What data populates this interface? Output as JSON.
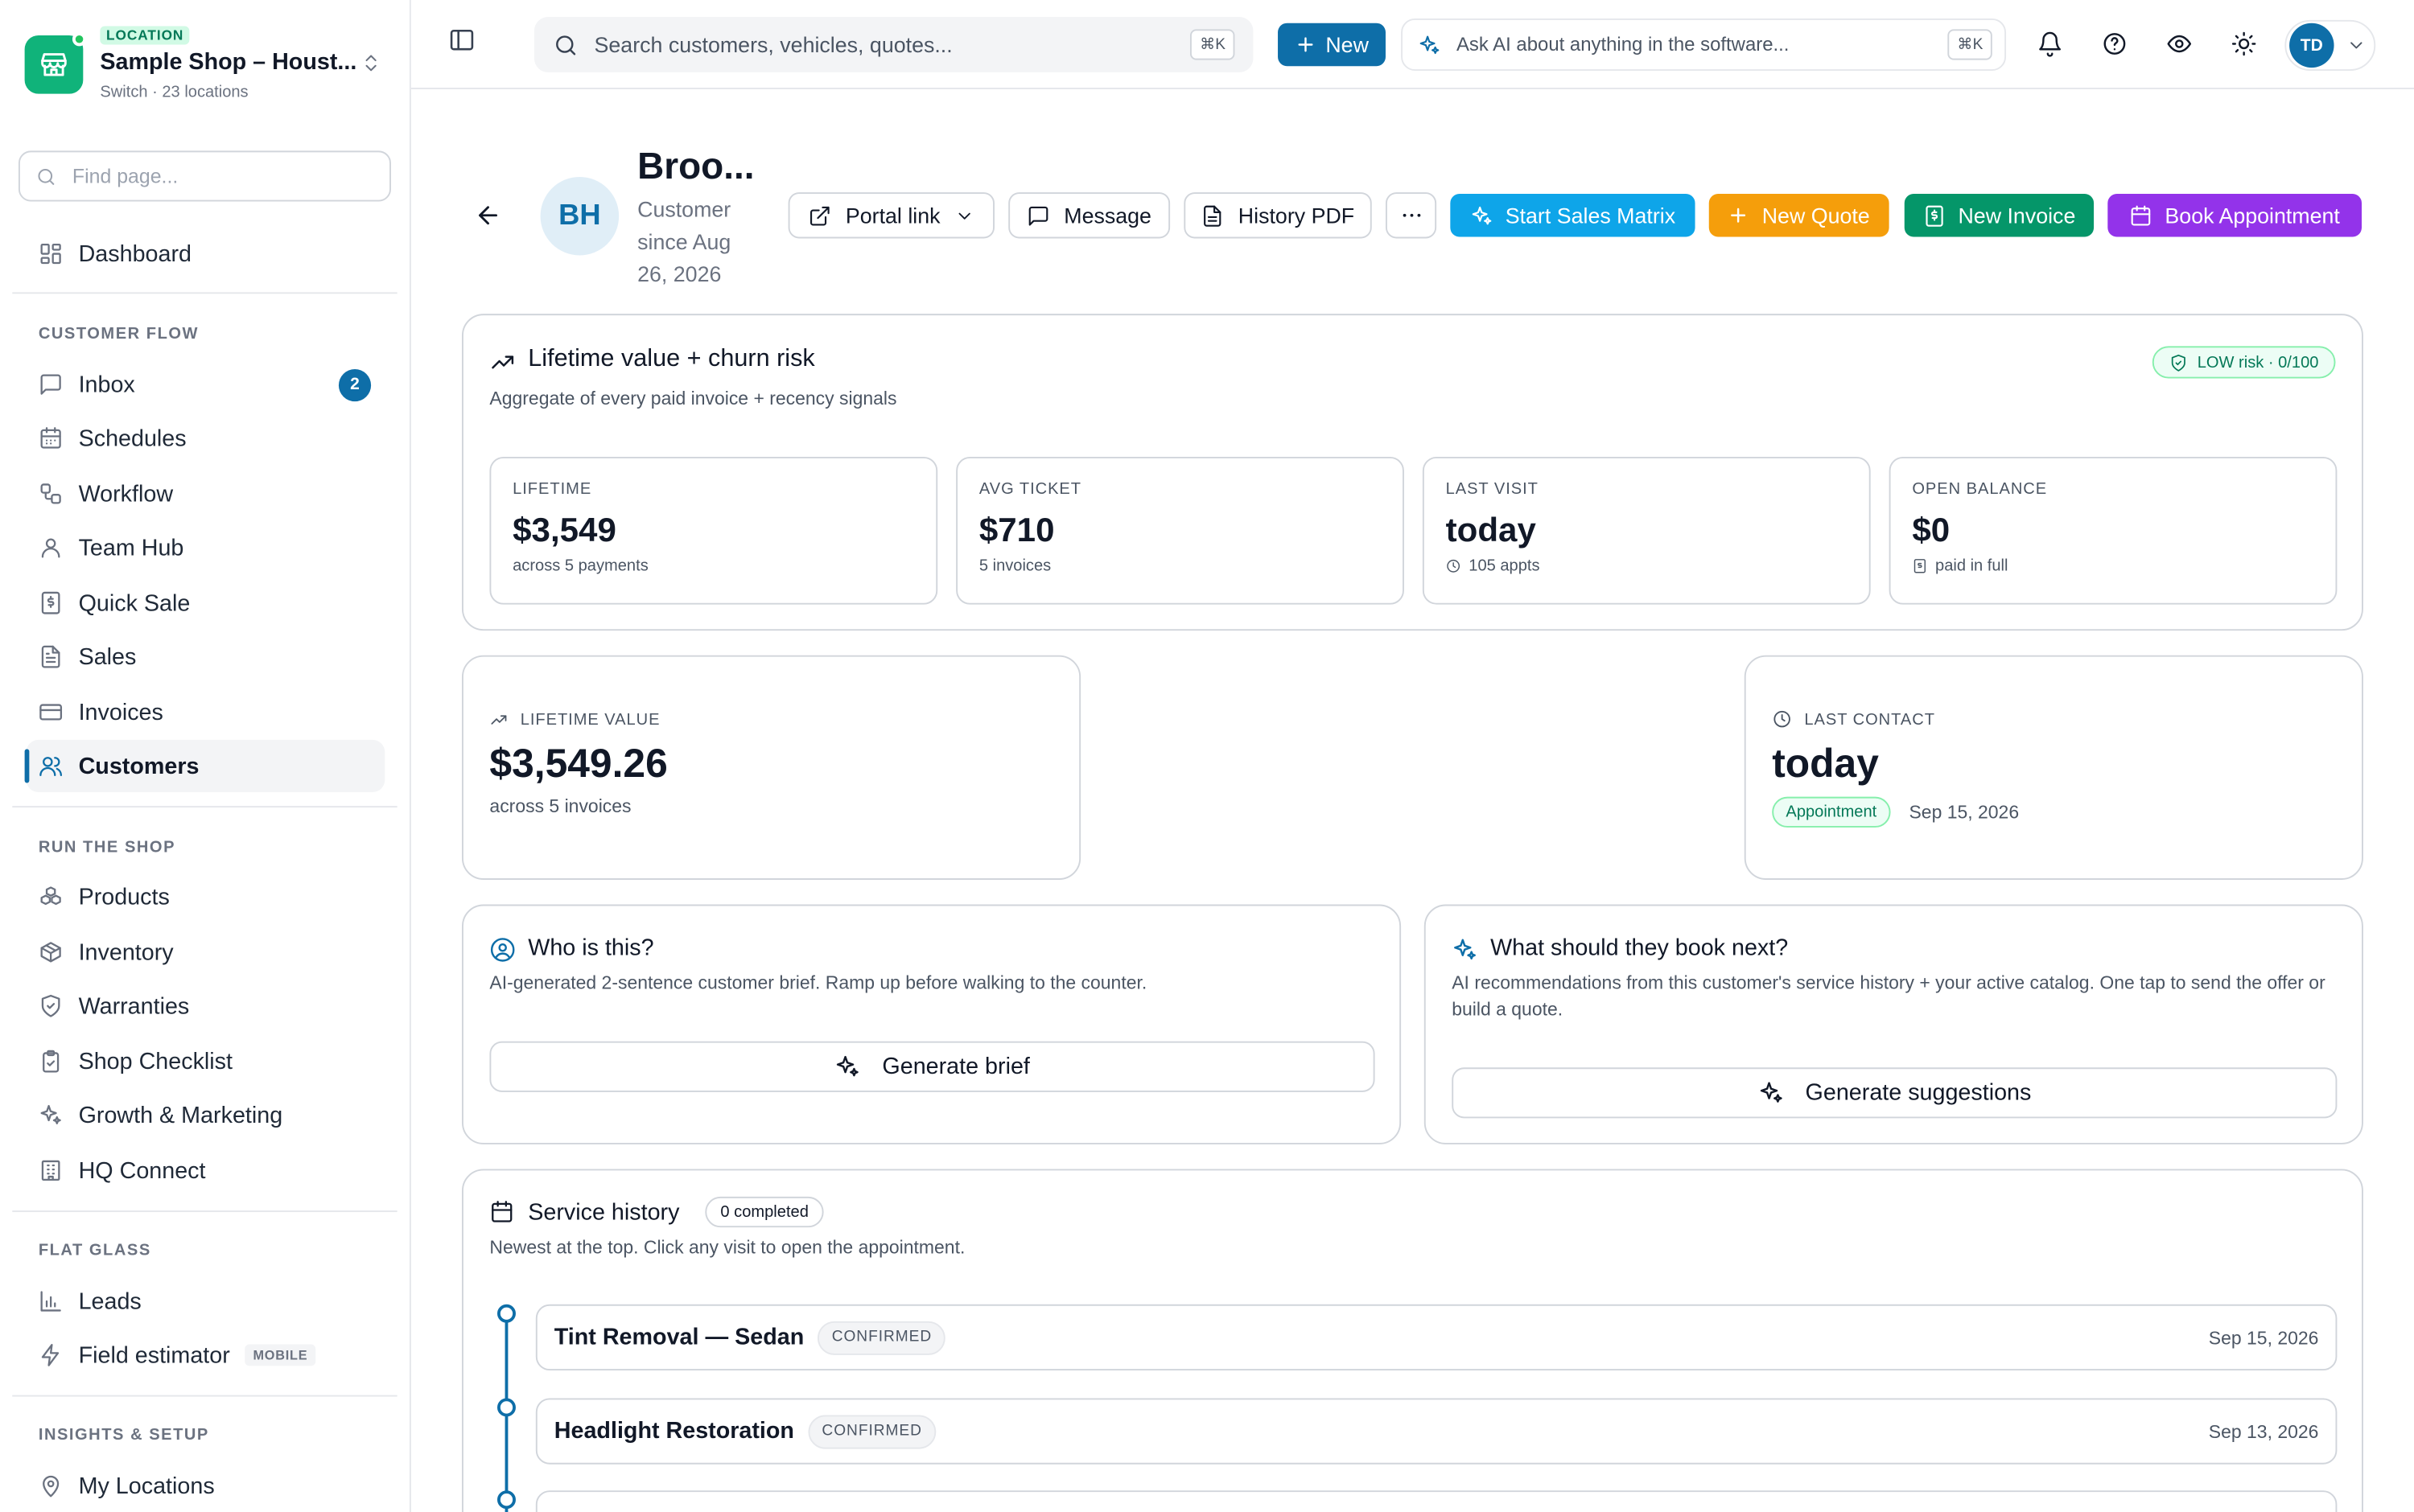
{
  "location": {
    "badge": "LOCATION",
    "name": "Sample Shop – Houst...",
    "sub": "Switch · 23 locations"
  },
  "sidebar": {
    "find_placeholder": "Find page...",
    "dashboard": "Dashboard",
    "sections": [
      "CUSTOMER FLOW",
      "RUN THE SHOP",
      "FLAT GLASS",
      "INSIGHTS & SETUP"
    ],
    "customer_flow": [
      {
        "label": "Inbox",
        "badge": "2"
      },
      {
        "label": "Schedules"
      },
      {
        "label": "Workflow"
      },
      {
        "label": "Team Hub"
      },
      {
        "label": "Quick Sale"
      },
      {
        "label": "Sales"
      },
      {
        "label": "Invoices"
      },
      {
        "label": "Customers"
      }
    ],
    "run_the_shop": [
      "Products",
      "Inventory",
      "Warranties",
      "Shop Checklist",
      "Growth & Marketing",
      "HQ Connect"
    ],
    "flat_glass": [
      {
        "label": "Leads"
      },
      {
        "label": "Field estimator",
        "tag": "MOBILE"
      }
    ],
    "insights": [
      "My Locations"
    ]
  },
  "topbar": {
    "search_placeholder": "Search customers, vehicles, quotes...",
    "search_kbd": "⌘K",
    "new_label": "New",
    "ai_text": "Ask AI about anything in the software...",
    "ai_kbd": "⌘K",
    "user_initials": "TD"
  },
  "customer": {
    "initials": "BH",
    "name": "Broo...",
    "since": "Customer since Aug 26, 2026",
    "actions": {
      "portal": "Portal link",
      "message": "Message",
      "history_pdf": "History PDF",
      "sales_matrix": "Start Sales Matrix",
      "new_quote": "New Quote",
      "new_invoice": "New Invoice",
      "book": "Book Appointment"
    },
    "colors": {
      "sales_matrix": "#0ea5e9",
      "new_quote": "#f59e0b",
      "new_invoice": "#059669",
      "book": "#9333ea"
    }
  },
  "lifetime_card": {
    "title": "Lifetime value + churn risk",
    "subtitle": "Aggregate of every paid invoice + recency signals",
    "risk": "LOW risk · 0/100",
    "stats": [
      {
        "label": "LIFETIME",
        "value": "$3,549",
        "note": "across 5 payments"
      },
      {
        "label": "AVG TICKET",
        "value": "$710",
        "note": "5 invoices"
      },
      {
        "label": "LAST VISIT",
        "value": "today",
        "note": "105 appts"
      },
      {
        "label": "OPEN BALANCE",
        "value": "$0",
        "note": "paid in full"
      }
    ]
  },
  "lifetime_value": {
    "label": "LIFETIME VALUE",
    "value": "$3,549.26",
    "note": "across 5 invoices"
  },
  "last_contact": {
    "label": "LAST CONTACT",
    "value": "today",
    "type": "Appointment",
    "date": "Sep 15, 2026"
  },
  "who": {
    "title": "Who is this?",
    "subtitle": "AI-generated 2-sentence customer brief. Ramp up before walking to the counter.",
    "button": "Generate brief"
  },
  "next": {
    "title": "What should they book next?",
    "subtitle": "AI recommendations from this customer's service history + your active catalog. One tap to send the offer or build a quote.",
    "button": "Generate suggestions"
  },
  "history": {
    "title": "Service history",
    "count": "0 completed",
    "subtitle": "Newest at the top. Click any visit to open the appointment.",
    "visits": [
      {
        "title": "Tint Removal — Sedan",
        "status": "CONFIRMED",
        "date": "Sep 15, 2026"
      },
      {
        "title": "Headlight Restoration",
        "status": "CONFIRMED",
        "date": "Sep 13, 2026"
      }
    ]
  }
}
